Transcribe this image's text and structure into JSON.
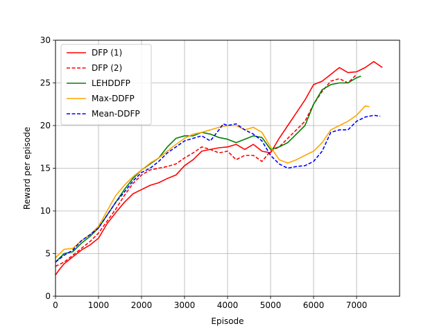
{
  "chart_data": {
    "type": "line",
    "xlabel": "Episode",
    "ylabel": "Reward per episode",
    "xlim": [
      0,
      8000
    ],
    "ylim": [
      0,
      30
    ],
    "xticks": [
      0,
      1000,
      2000,
      3000,
      4000,
      5000,
      6000,
      7000
    ],
    "yticks": [
      0,
      5,
      10,
      15,
      20,
      25,
      30
    ],
    "grid": true,
    "legend_position": "top-left",
    "series": [
      {
        "name": "DFP (1)",
        "color": "#ff0000",
        "dash": "solid",
        "x": [
          0,
          100,
          200,
          400,
          600,
          800,
          1000,
          1200,
          1400,
          1600,
          1800,
          2000,
          2200,
          2400,
          2600,
          2800,
          3000,
          3200,
          3400,
          3600,
          3800,
          4000,
          4200,
          4400,
          4600,
          4800,
          5000,
          5200,
          5400,
          5600,
          5800,
          6000,
          6200,
          6400,
          6600,
          6800,
          7000,
          7200,
          7400,
          7600
        ],
        "y": [
          2.5,
          3.2,
          3.8,
          4.6,
          5.4,
          6.0,
          6.8,
          8.5,
          9.8,
          11.0,
          12.0,
          12.5,
          13.0,
          13.3,
          13.8,
          14.2,
          15.3,
          16.0,
          17.0,
          17.2,
          17.4,
          17.5,
          17.8,
          17.2,
          17.8,
          17.0,
          16.8,
          18.5,
          20.0,
          21.5,
          23.0,
          24.8,
          25.2,
          26.0,
          26.8,
          26.2,
          26.3,
          26.8,
          27.5,
          26.8
        ]
      },
      {
        "name": "DFP (2)",
        "color": "#ff0000",
        "dash": "dashed",
        "x": [
          0,
          200,
          400,
          600,
          800,
          1000,
          1200,
          1400,
          1600,
          1800,
          2000,
          2200,
          2400,
          2600,
          2800,
          3000,
          3200,
          3400,
          3600,
          3800,
          4000,
          4200,
          4400,
          4600,
          4800,
          5000,
          5200,
          5400,
          5600,
          5800,
          6000,
          6200,
          6400,
          6600,
          6800,
          7000
        ],
        "y": [
          3.5,
          4.0,
          4.8,
          5.6,
          6.4,
          7.4,
          8.8,
          10.2,
          11.8,
          13.2,
          14.2,
          14.8,
          15.0,
          15.2,
          15.5,
          16.2,
          16.8,
          17.5,
          17.2,
          16.8,
          17.0,
          16.0,
          16.5,
          16.5,
          15.8,
          17.0,
          17.5,
          18.5,
          19.5,
          20.5,
          22.5,
          24.0,
          25.2,
          25.5,
          25.0,
          26.0
        ]
      },
      {
        "name": "LEHDDFP",
        "color": "#008000",
        "dash": "solid",
        "x": [
          0,
          200,
          400,
          600,
          800,
          1000,
          1200,
          1400,
          1600,
          1800,
          2000,
          2200,
          2400,
          2600,
          2800,
          3000,
          3200,
          3400,
          3600,
          3800,
          4000,
          4200,
          4400,
          4600,
          4800,
          5000,
          5200,
          5400,
          5600,
          5800,
          6000,
          6200,
          6400,
          6600,
          6800,
          7000,
          7100
        ],
        "y": [
          4.0,
          5.0,
          5.2,
          6.2,
          7.0,
          8.0,
          9.5,
          11.0,
          12.5,
          13.8,
          14.8,
          15.5,
          16.2,
          17.5,
          18.5,
          18.8,
          18.8,
          19.2,
          19.0,
          18.6,
          18.4,
          18.0,
          18.4,
          18.8,
          18.6,
          17.2,
          17.5,
          18.0,
          19.0,
          20.0,
          22.5,
          24.2,
          24.8,
          25.0,
          25.0,
          25.6,
          25.8
        ]
      },
      {
        "name": "Max-DDFP",
        "color": "#ffa500",
        "dash": "solid",
        "x": [
          0,
          200,
          400,
          600,
          800,
          1000,
          1200,
          1400,
          1600,
          1800,
          2000,
          2200,
          2400,
          2600,
          2800,
          3000,
          3200,
          3400,
          3600,
          3800,
          4000,
          4200,
          4400,
          4600,
          4800,
          5000,
          5200,
          5400,
          5600,
          5800,
          6000,
          6200,
          6400,
          6600,
          6800,
          7000,
          7200,
          7300
        ],
        "y": [
          4.5,
          5.5,
          5.6,
          6.5,
          7.2,
          8.2,
          10.0,
          11.8,
          13.0,
          14.0,
          14.8,
          15.6,
          16.2,
          17.0,
          17.8,
          18.5,
          19.0,
          19.2,
          19.5,
          19.8,
          20.0,
          20.0,
          19.5,
          19.8,
          19.2,
          17.5,
          16.0,
          15.6,
          16.0,
          16.5,
          17.0,
          18.0,
          19.5,
          20.0,
          20.5,
          21.2,
          22.3,
          22.2
        ]
      },
      {
        "name": "Mean-DDFP",
        "color": "#0000ff",
        "dash": "dashed",
        "x": [
          0,
          200,
          400,
          600,
          800,
          1000,
          1200,
          1400,
          1600,
          1800,
          2000,
          2200,
          2400,
          2600,
          2800,
          3000,
          3200,
          3400,
          3600,
          3800,
          3900,
          4000,
          4200,
          4400,
          4600,
          4800,
          5000,
          5200,
          5400,
          5600,
          5800,
          6000,
          6200,
          6400,
          6600,
          6800,
          7000,
          7200,
          7400,
          7550
        ],
        "y": [
          4.0,
          4.8,
          5.4,
          6.5,
          7.2,
          8.0,
          9.5,
          11.0,
          12.2,
          13.5,
          14.5,
          15.0,
          15.8,
          16.8,
          17.5,
          18.2,
          18.5,
          18.8,
          18.2,
          19.5,
          20.2,
          20.0,
          20.2,
          19.5,
          19.0,
          18.2,
          16.5,
          15.5,
          15.0,
          15.2,
          15.3,
          15.8,
          17.0,
          19.2,
          19.5,
          19.5,
          20.5,
          21.0,
          21.2,
          21.1
        ]
      }
    ]
  }
}
